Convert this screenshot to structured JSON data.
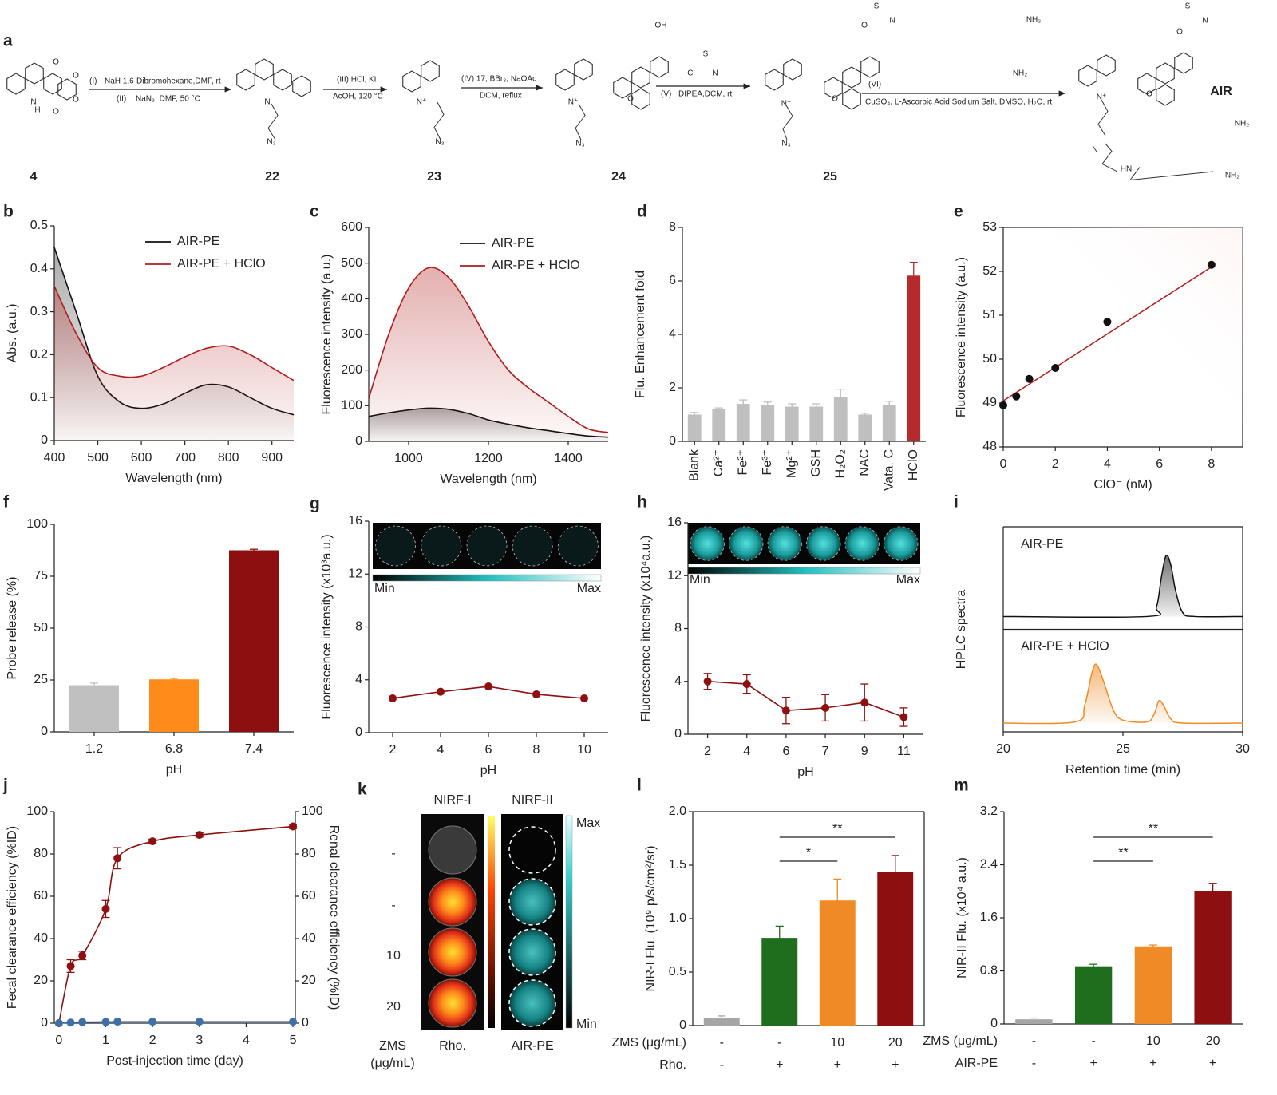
{
  "scheme": {
    "panel": "a",
    "compounds": [
      "4",
      "22",
      "23",
      "24",
      "25"
    ],
    "product": "AIR",
    "conditions": [
      "(I)",
      "NaH 1,6-Dibromohexane,DMF, rt",
      "(II)",
      "NaN₃, DMF, 50 °C",
      "(III) HCl, KI",
      "AcOH, 120 °C",
      "(IV) 17, BBr₃, NaOAc",
      "DCM, reflux",
      "(V)",
      "DIPEA,DCM, rt",
      "(VI)",
      "CuSO₄, L-Ascorbic Acid Sodium Salt, DMSO, H₂O, rt"
    ],
    "atoms": [
      "N",
      "H",
      "O",
      "O",
      "O",
      "O",
      "N",
      "N₃",
      "N⁺",
      "N₃",
      "OH",
      "N⁺",
      "O",
      "N₃",
      "S",
      "Cl",
      "N",
      "S",
      "O",
      "N",
      "N⁺",
      "O",
      "N₃",
      "NH₂",
      "NH₂",
      "S",
      "O",
      "N",
      "N⁺",
      "O",
      "NH₂",
      "NH₂",
      "HN",
      "N"
    ]
  },
  "imaging": {
    "panel": "k",
    "columns": [
      "NIRF-I",
      "NIRF-II"
    ],
    "rows": [
      "-",
      "-",
      "10",
      "20"
    ],
    "max": "Max",
    "min": "Min",
    "footer": [
      "ZMS",
      "(μg/mL)",
      "Rho.",
      "AIR-PE"
    ]
  },
  "chart_data": [
    {
      "panel": "b",
      "type": "line",
      "smooth": true,
      "x": [
        400,
        450,
        500,
        550,
        600,
        650,
        700,
        750,
        800,
        850,
        900,
        950
      ],
      "series": [
        {
          "name": "AIR-PE",
          "color": "#111111",
          "fill": true,
          "values": [
            0.45,
            0.3,
            0.15,
            0.09,
            0.075,
            0.085,
            0.11,
            0.13,
            0.125,
            0.1,
            0.075,
            0.06
          ]
        },
        {
          "name": "AIR-PE + HClO",
          "color": "#b01c1c",
          "fill": true,
          "values": [
            0.36,
            0.25,
            0.17,
            0.15,
            0.15,
            0.17,
            0.195,
            0.215,
            0.22,
            0.2,
            0.17,
            0.14
          ]
        }
      ],
      "xlim": [
        400,
        950
      ],
      "xticks": [
        400,
        500,
        600,
        700,
        800,
        900
      ],
      "ylim": [
        0,
        0.5
      ],
      "yticks": [
        0,
        0.1,
        0.2,
        0.3,
        0.4,
        0.5
      ],
      "xlabel": "Wavelength (nm)",
      "ylabel": "Abs. (a.u.)",
      "legend": "upper right"
    },
    {
      "panel": "c",
      "type": "line",
      "smooth": true,
      "x": [
        900,
        950,
        1000,
        1050,
        1100,
        1150,
        1200,
        1250,
        1300,
        1350,
        1400,
        1450,
        1500
      ],
      "series": [
        {
          "name": "AIR-PE",
          "color": "#111111",
          "fill": true,
          "values": [
            70,
            80,
            88,
            93,
            90,
            78,
            60,
            48,
            38,
            30,
            22,
            15,
            12
          ]
        },
        {
          "name": "AIR-PE + HClO",
          "color": "#b01c1c",
          "fill": true,
          "values": [
            120,
            300,
            430,
            487,
            460,
            380,
            280,
            200,
            150,
            110,
            70,
            35,
            25
          ]
        }
      ],
      "xlim": [
        900,
        1500
      ],
      "xticks": [
        1000,
        1200,
        1400
      ],
      "ylim": [
        0,
        600
      ],
      "yticks": [
        0,
        100,
        200,
        300,
        400,
        500,
        600
      ],
      "xlabel": "Wavelength (nm)",
      "ylabel": "Fluorescence intensity (a.u.)",
      "legend": "upper right"
    },
    {
      "panel": "d",
      "type": "bar",
      "categories": [
        "Blank",
        "Ca²⁺",
        "Fe²⁺",
        "Fe³⁺",
        "Mg²⁺",
        "GSH",
        "H₂O₂",
        "NAC",
        "Vata. C",
        "HClO"
      ],
      "values": [
        1.0,
        1.2,
        1.4,
        1.35,
        1.3,
        1.3,
        1.65,
        1.0,
        1.35,
        6.2
      ],
      "errors": [
        0.08,
        0.05,
        0.15,
        0.12,
        0.1,
        0.1,
        0.3,
        0.05,
        0.15,
        0.5
      ],
      "colors": [
        "#bfbfbf",
        "#bfbfbf",
        "#bfbfbf",
        "#bfbfbf",
        "#bfbfbf",
        "#bfbfbf",
        "#bfbfbf",
        "#bfbfbf",
        "#bfbfbf",
        "#b52a2a"
      ],
      "label_colors": [
        "#222222",
        "#222222",
        "#222222",
        "#222222",
        "#222222",
        "#222222",
        "#222222",
        "#222222",
        "#222222",
        "#b01c1c"
      ],
      "ylim": [
        0,
        8
      ],
      "yticks": [
        0,
        2,
        4,
        6,
        8
      ],
      "ylabel": "Flu. Enhancement fold",
      "rotate_labels": true
    },
    {
      "panel": "e",
      "type": "scatter",
      "x": [
        0,
        0.5,
        1,
        2,
        4,
        8
      ],
      "y": [
        48.95,
        49.15,
        49.55,
        49.8,
        50.85,
        52.15
      ],
      "color": "#111111",
      "fit": {
        "x": [
          0,
          8
        ],
        "y": [
          49.05,
          52.1
        ],
        "color": "#b01c1c"
      },
      "xlim": [
        0,
        9.2
      ],
      "xticks": [
        0,
        2,
        4,
        6,
        8
      ],
      "ylim": [
        48,
        53
      ],
      "yticks": [
        48,
        49,
        50,
        51,
        52,
        53
      ],
      "xlabel": "ClO⁻ (nM)",
      "ylabel": "Fluorescence intensity (a.u.)",
      "frame": true
    },
    {
      "panel": "f",
      "type": "bar",
      "categories": [
        "1.2",
        "6.8",
        "7.4"
      ],
      "values": [
        22.5,
        25.3,
        87.5
      ],
      "errors": [
        1,
        0.5,
        0.5
      ],
      "colors": [
        "#c0c0c0",
        "#ff8c1a",
        "#8e0f0f"
      ],
      "ylim": [
        0,
        100
      ],
      "yticks": [
        0,
        25,
        50,
        75,
        100
      ],
      "xlabel": "pH",
      "ylabel": "Probe release (%)"
    },
    {
      "panel": "g",
      "type": "line",
      "markers": true,
      "x": [
        2,
        4,
        6,
        8,
        10
      ],
      "series": [
        {
          "name": null,
          "color": "#8e1010",
          "values": [
            2.6,
            3.1,
            3.5,
            2.9,
            2.6
          ]
        }
      ],
      "xlim": [
        1,
        11
      ],
      "xticks": [
        2,
        4,
        6,
        8,
        10
      ],
      "ylim": [
        0,
        16
      ],
      "yticks": [
        0,
        4,
        8,
        12,
        16
      ],
      "xlabel": "pH",
      "ylabel": "Fluorescence intensity (x10³a.u.)",
      "inset": {
        "min": "Min",
        "max": "Max"
      }
    },
    {
      "panel": "h",
      "type": "line",
      "markers": true,
      "categories": [
        "2",
        "4",
        "6",
        "7",
        "9",
        "11"
      ],
      "series": [
        {
          "name": null,
          "color": "#8e1010",
          "values": [
            4.0,
            3.8,
            1.8,
            2.0,
            2.4,
            1.3
          ],
          "errors": [
            0.6,
            0.7,
            1.0,
            1.0,
            1.4,
            0.7
          ]
        }
      ],
      "ylim": [
        0,
        16
      ],
      "yticks": [
        0,
        4,
        8,
        12,
        16
      ],
      "xlabel": "pH",
      "ylabel": "Fluorescence intensity (x10⁴a.u.)",
      "inset": {
        "min": "Min",
        "max": "Max"
      }
    },
    {
      "panel": "i",
      "type": "hplc",
      "frame": true,
      "xlim": [
        20,
        30
      ],
      "xticks": [
        20,
        25,
        30
      ],
      "xlabel": "Retention time (min)",
      "ylabel": "HPLC spectra",
      "series": [
        {
          "name": "AIR-PE",
          "color": "#111111",
          "ylim": [
            -0.2,
            1.4
          ],
          "x": [
            20,
            26,
            26.4,
            26.6,
            26.8,
            27,
            27.2,
            27.5,
            28,
            30
          ],
          "values": [
            0,
            0,
            0.15,
            0.6,
            0.95,
            0.8,
            0.4,
            0.06,
            0,
            0
          ]
        },
        {
          "name": "AIR-PE + HClO",
          "color": "#f08a24",
          "ylim": [
            -0.15,
            1.6
          ],
          "x": [
            20,
            23,
            23.4,
            23.7,
            23.9,
            24.2,
            24.6,
            25,
            26,
            26.3,
            26.5,
            26.7,
            27,
            27.5,
            30
          ],
          "values": [
            0,
            0.02,
            0.3,
            0.85,
            1.0,
            0.7,
            0.22,
            0.05,
            0.02,
            0.15,
            0.38,
            0.3,
            0.07,
            0,
            0
          ]
        }
      ]
    },
    {
      "panel": "j",
      "type": "line",
      "markers": true,
      "smooth": true,
      "x": [
        0,
        0.25,
        0.5,
        1,
        1.25,
        2,
        3,
        5
      ],
      "series": [
        {
          "name": null,
          "color": "#8e1010",
          "values": [
            0,
            27,
            32,
            54,
            78,
            86,
            89,
            93
          ],
          "errors": [
            0,
            3,
            2,
            4,
            5,
            1,
            1,
            1
          ]
        },
        {
          "name": null,
          "color": "#3d6fa8",
          "axis": "y2",
          "values": [
            0,
            0.3,
            0.5,
            0.6,
            0.7,
            0.7,
            0.7,
            0.7
          ]
        }
      ],
      "xlim": [
        -0.1,
        5.05
      ],
      "xticks": [
        0,
        1,
        2,
        3,
        4,
        5
      ],
      "ylim": [
        0,
        100
      ],
      "yticks": [
        0,
        20,
        40,
        60,
        80,
        100
      ],
      "y2lim": [
        0,
        100
      ],
      "y2ticks": [
        0,
        20,
        40,
        60,
        80,
        100
      ],
      "xlabel": "Post-injection time (day)",
      "ylabel": "Fecal clearance efficiency (%ID)",
      "y2label": "Renal clearance efficiency (%ID)"
    },
    {
      "panel": "l",
      "type": "bar",
      "frame": true,
      "categories": [
        null,
        null,
        null,
        null
      ],
      "values": [
        0.07,
        0.82,
        1.17,
        1.44
      ],
      "errors": [
        0.02,
        0.11,
        0.2,
        0.15
      ],
      "colors": [
        "#a6a6a6",
        "#1e6e1e",
        "#f08a24",
        "#8e0f0f"
      ],
      "ylim": [
        0,
        2.0
      ],
      "yticks": [
        0,
        0.5,
        {
          "value": 1.0,
          "label": "1.0"
        },
        1.5,
        {
          "value": 2.0,
          "label": "2.0"
        }
      ],
      "ylabel": "NIR-I Flu. (10⁹ p/s/cm²/sr)",
      "rows": [
        {
          "label": "ZMS (μg/mL)",
          "cells": [
            "-",
            "-",
            "10",
            "20"
          ]
        },
        {
          "label": "Rho.",
          "cells": [
            "-",
            "+",
            "+",
            "+"
          ]
        }
      ],
      "annotations": [
        {
          "text": "*",
          "between": [
            1,
            2
          ]
        },
        {
          "text": "**",
          "between": [
            1,
            3
          ]
        }
      ]
    },
    {
      "panel": "m",
      "type": "bar",
      "categories": [
        null,
        null,
        null,
        null
      ],
      "values": [
        0.07,
        0.87,
        1.17,
        2.0
      ],
      "errors": [
        0.02,
        0.03,
        0.02,
        0.12
      ],
      "colors": [
        "#a6a6a6",
        "#1e6e1e",
        "#f08a24",
        "#8e0f0f"
      ],
      "ylim": [
        0,
        3.2
      ],
      "yticks": [
        0,
        0.8,
        1.6,
        2.4,
        3.2
      ],
      "ylabel": "NIR-II Flu. (x10⁴ a.u.)",
      "rows": [
        {
          "label": "ZMS (μg/mL)",
          "cells": [
            "-",
            "-",
            "10",
            "20"
          ]
        },
        {
          "label": "AIR-PE",
          "cells": [
            "-",
            "+",
            "+",
            "+"
          ]
        }
      ],
      "annotations": [
        {
          "text": "**",
          "between": [
            1,
            2
          ]
        },
        {
          "text": "**",
          "between": [
            1,
            3
          ]
        }
      ]
    }
  ]
}
